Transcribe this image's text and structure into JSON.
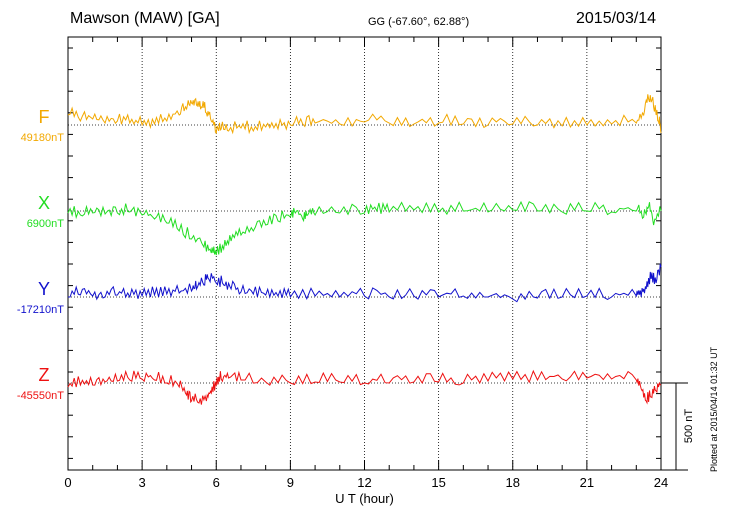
{
  "header": {
    "station": "Mawson (MAW)  [GA]",
    "coords": "GG (-67.60°,  62.88°)",
    "date": "2015/03/14"
  },
  "footer": {
    "plotted": "Plotted at 2015/04/14 01:32 UT"
  },
  "chart_data": {
    "type": "line",
    "xlabel": "U T (hour)",
    "xlim": [
      0,
      24
    ],
    "xticks": [
      0,
      3,
      6,
      9,
      12,
      15,
      18,
      21,
      24
    ],
    "grid": true,
    "scale_bar": {
      "label": "500 nT",
      "value_nT": 500
    },
    "series": [
      {
        "name": "F",
        "baseline_label": "49180nT",
        "baseline_nT": 49180,
        "color": "#f2a800",
        "x": [
          0,
          0.5,
          1,
          1.5,
          2,
          2.5,
          3,
          3.5,
          4,
          4.5,
          4.8,
          5,
          5.2,
          5.4,
          5.6,
          5.8,
          6,
          6.2,
          6.5,
          7,
          7.5,
          8,
          8.5,
          9,
          9.5,
          10,
          11,
          12,
          13,
          14,
          15,
          16,
          17,
          18,
          19,
          20,
          21,
          22,
          23,
          23.3,
          23.5,
          23.7,
          23.9,
          24
        ],
        "y": [
          49230,
          49200,
          49210,
          49190,
          49200,
          49190,
          49180,
          49185,
          49200,
          49230,
          49260,
          49290,
          49280,
          49270,
          49240,
          49200,
          49140,
          49160,
          49150,
          49165,
          49150,
          49170,
          49160,
          49180,
          49185,
          49190,
          49185,
          49195,
          49190,
          49185,
          49190,
          49185,
          49180,
          49185,
          49180,
          49175,
          49180,
          49185,
          49190,
          49230,
          49310,
          49270,
          49200,
          49140
        ]
      },
      {
        "name": "X",
        "baseline_label": "6900nT",
        "baseline_nT": 6900,
        "color": "#22dd22",
        "x": [
          0,
          0.5,
          1,
          1.5,
          2,
          2.5,
          3,
          3.5,
          4,
          4.5,
          5,
          5.5,
          5.8,
          6,
          6.3,
          6.6,
          7,
          7.5,
          8,
          8.5,
          9,
          9.2,
          9.5,
          9.7,
          10,
          11,
          12,
          12.5,
          13,
          14,
          15,
          16,
          17,
          18,
          19,
          20,
          21,
          22,
          23,
          23.3,
          23.5,
          23.7,
          24
        ],
        "y": [
          6890,
          6880,
          6890,
          6885,
          6890,
          6895,
          6880,
          6860,
          6840,
          6800,
          6760,
          6720,
          6690,
          6680,
          6710,
          6750,
          6780,
          6800,
          6830,
          6850,
          6870,
          6890,
          6860,
          6880,
          6880,
          6890,
          6890,
          6900,
          6895,
          6905,
          6895,
          6900,
          6895,
          6905,
          6900,
          6895,
          6900,
          6895,
          6900,
          6870,
          6920,
          6830,
          6900
        ]
      },
      {
        "name": "Y",
        "baseline_label": "-17210nT",
        "baseline_nT": -17210,
        "color": "#1111cc",
        "x": [
          0,
          0.5,
          1,
          1.5,
          2,
          2.5,
          3,
          3.5,
          4,
          4.5,
          5,
          5.2,
          5.5,
          5.7,
          6,
          6.3,
          6.6,
          7,
          7.5,
          8,
          8.5,
          9,
          10,
          11,
          12,
          13,
          14,
          15,
          16,
          17,
          18,
          19,
          20,
          21,
          22,
          23,
          23.2,
          23.4,
          23.6,
          23.8,
          24
        ],
        "y": [
          -17210,
          -17200,
          -17205,
          -17210,
          -17200,
          -17210,
          -17205,
          -17200,
          -17195,
          -17190,
          -17180,
          -17170,
          -17150,
          -17120,
          -17140,
          -17150,
          -17170,
          -17185,
          -17195,
          -17200,
          -17205,
          -17210,
          -17205,
          -17210,
          -17205,
          -17210,
          -17205,
          -17210,
          -17205,
          -17210,
          -17220,
          -17215,
          -17210,
          -17205,
          -17210,
          -17205,
          -17210,
          -17170,
          -17120,
          -17140,
          -17060
        ]
      },
      {
        "name": "Z",
        "baseline_label": "-45550nT",
        "baseline_nT": -45550,
        "color": "#ee1111",
        "x": [
          0,
          0.5,
          1,
          1.5,
          2,
          2.5,
          3,
          3.5,
          4,
          4.5,
          4.8,
          5,
          5.3,
          5.6,
          5.8,
          6,
          6.2,
          6.5,
          7,
          8,
          9,
          10,
          11,
          12,
          13,
          14,
          15,
          16,
          17,
          18,
          19,
          20,
          21,
          22,
          23,
          23.2,
          23.4,
          23.6,
          23.8,
          24
        ],
        "y": [
          -45570,
          -45560,
          -45560,
          -45545,
          -45540,
          -45535,
          -45530,
          -45535,
          -45550,
          -45570,
          -45610,
          -45640,
          -45650,
          -45640,
          -45600,
          -45560,
          -45530,
          -45525,
          -45535,
          -45545,
          -45550,
          -45545,
          -45545,
          -45550,
          -45550,
          -45545,
          -45545,
          -45550,
          -45540,
          -45530,
          -45535,
          -45530,
          -45525,
          -45530,
          -45535,
          -45580,
          -45640,
          -45620,
          -45590,
          -45560
        ]
      }
    ]
  }
}
